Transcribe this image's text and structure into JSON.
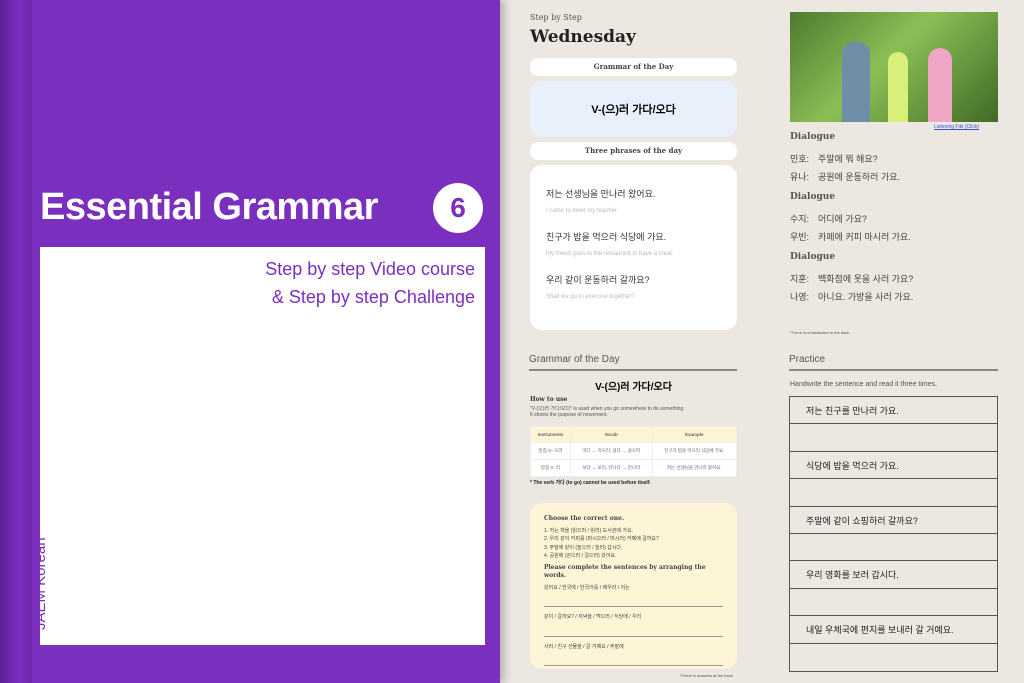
{
  "cover": {
    "title": "Essential Grammar",
    "volume": "6",
    "subtitle_1": "Step by step Video course",
    "subtitle_2": "& Step by step Challenge",
    "brand": "JAEM Korean",
    "color": "#7b2fbf"
  },
  "page": {
    "kicker": "Step by Step",
    "day": "Wednesday",
    "grammar_pill": "Grammar of the Day",
    "grammar": "V-(으)러 가다/오다",
    "phrases_pill": "Three phrases of the day",
    "phrases": [
      {
        "ko": "저는 선생님을 만나러 왔어요.",
        "en": "I came to meet my teacher."
      },
      {
        "ko": "친구가 밥을 먹으러 식당에 가요.",
        "en": "My friend goes to the restaurant to have a meal."
      },
      {
        "ko": "우리 같이 운동하러 갈까요?",
        "en": "Shall we go to exercise together?"
      }
    ],
    "grammar_section": {
      "heading": "Grammar of the Day",
      "title": "V-(으)러 가다/오다",
      "how_to_use": "How to use",
      "desc_1": "\"V-(으)러 가다/오다\" is used when you go somewhere to do something.",
      "desc_2": "It shows the purpose of movement.",
      "table": {
        "headers": [
          "Instruments",
          "Vocab",
          "Example"
        ],
        "rows": [
          [
            "받침 O: 으러",
            "먹다 → 먹으러, 끊다 → 끊으러",
            "친구가 밥을 먹으러 식당에 가요."
          ],
          [
            "받침 X: 러",
            "보다 → 보러, 만나다 → 만나러",
            "저는 선생님을 만나러 왔어요."
          ]
        ]
      },
      "note": "* The verb 가다 (to go) cannot be used before itself."
    },
    "exercise": {
      "title_1": "Choose the correct one.",
      "items": [
        "1. 저는 책을 (읽으러 / 읽러) 도서관에 가요.",
        "2. 우리 같이 커피를 (마시으러 / 마시러) 카페에 갈까요?",
        "3. 주말에 같이 (놀으러 / 놀러) 갑시다.",
        "4. 공원에 (걷으러 / 걸으러) 왔어요."
      ],
      "title_2": "Please complete the sentences by arranging the words.",
      "arrange": [
        "왔어요 / 한국에 / 한국어를 / 배우러 / 저는",
        "같이 / 갈까요? / 저녁을 / 먹으러 / 식당에 / 우리",
        "사러 / 친구 선물을 / 갈 거예요 / 주말에"
      ],
      "footnote": "*There is answers at the back"
    },
    "photo_link": "Listening File (Click)",
    "dialogues": [
      {
        "heading": "Dialogue",
        "lines": [
          [
            "민호:",
            "주말에 뭐 해요?"
          ],
          [
            "유나:",
            "공원에 운동하러 가요."
          ]
        ]
      },
      {
        "heading": "Dialogue",
        "lines": [
          [
            "수지:",
            "어디에 가요?"
          ],
          [
            "우빈:",
            "카페에 커피 마시러 가요."
          ]
        ]
      },
      {
        "heading": "Dialogue",
        "lines": [
          [
            "지훈:",
            "백화점에 옷을 사러 가요?"
          ],
          [
            "나영:",
            "아니요. 가방을 사러 가요."
          ]
        ]
      }
    ],
    "dialogue_note": "*There is a translation in the back",
    "practice": {
      "heading": "Practice",
      "instruction": "Handwrite the sentence and read it three times.",
      "sentences": [
        "저는 친구를 만나러 가요.",
        "식당에 밥을 먹으러 가요.",
        "주말에 같이 쇼핑하러 갈까요?",
        "우리 영화를 보러 갑시다.",
        "내일 우체국에 편지를 보내러 갈 거예요."
      ]
    }
  }
}
